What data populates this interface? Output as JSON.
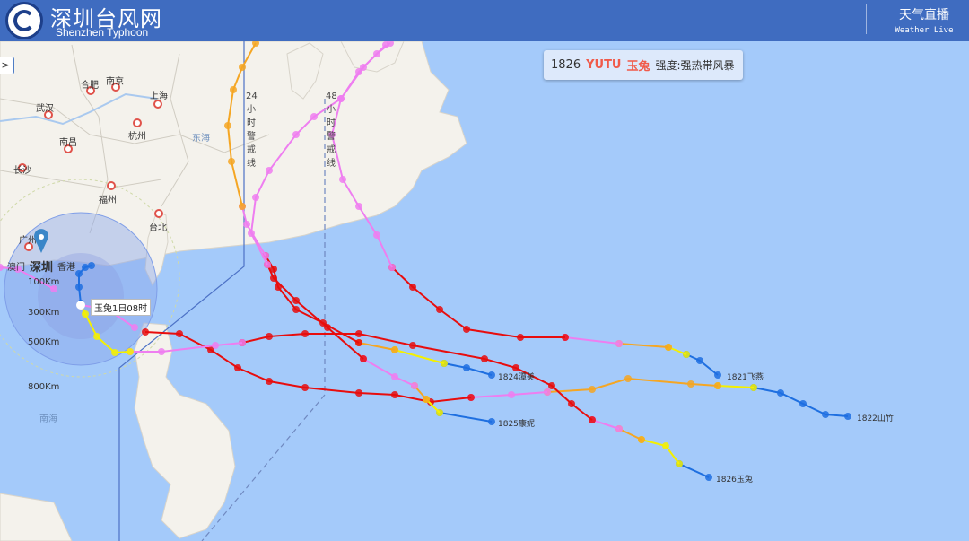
{
  "header": {
    "title": "深圳台风网",
    "subtitle": "Shenzhen Typhoon",
    "live": "天气直播",
    "live_en": "Weather Live"
  },
  "infobox": {
    "number": "1826",
    "name_en": "YUTU",
    "name_cn": "玉兔",
    "intensity": "强度:强热带风暴"
  },
  "expand_button": ">",
  "cities": [
    {
      "name": "合肥"
    },
    {
      "name": "南京"
    },
    {
      "name": "上海"
    },
    {
      "name": "武汉"
    },
    {
      "name": "杭州"
    },
    {
      "name": "南昌"
    },
    {
      "name": "长沙"
    },
    {
      "name": "福州"
    },
    {
      "name": "台北"
    },
    {
      "name": "广州"
    },
    {
      "name": "澳门"
    },
    {
      "name": "香港"
    }
  ],
  "marker_city": "深圳",
  "seas": {
    "east": "东海",
    "south": "南海"
  },
  "rings": [
    "100Km",
    "300Km",
    "500Km",
    "800Km"
  ],
  "warning_lines": {
    "h24": [
      "24",
      "小",
      "时",
      "警",
      "戒",
      "线"
    ],
    "h48": [
      "48",
      "小",
      "时",
      "警",
      "戒",
      "线"
    ]
  },
  "current_tip": "玉兔1日08时",
  "typhoons": [
    {
      "label": "1821飞燕"
    },
    {
      "label": "1822山竹"
    },
    {
      "label": "1824潭美"
    },
    {
      "label": "1825康妮"
    },
    {
      "label": "1826玉兔"
    }
  ],
  "colors": {
    "sea": "#a4cafa",
    "land": "#f4f2ec",
    "header": "#3f6cc0",
    "TD": "#1e6fe0",
    "TS": "#f4f000",
    "STS": "#f5a623",
    "TY": "#ee7ef0",
    "STY": "#e80d0d",
    "accent": "#f05a4a"
  }
}
